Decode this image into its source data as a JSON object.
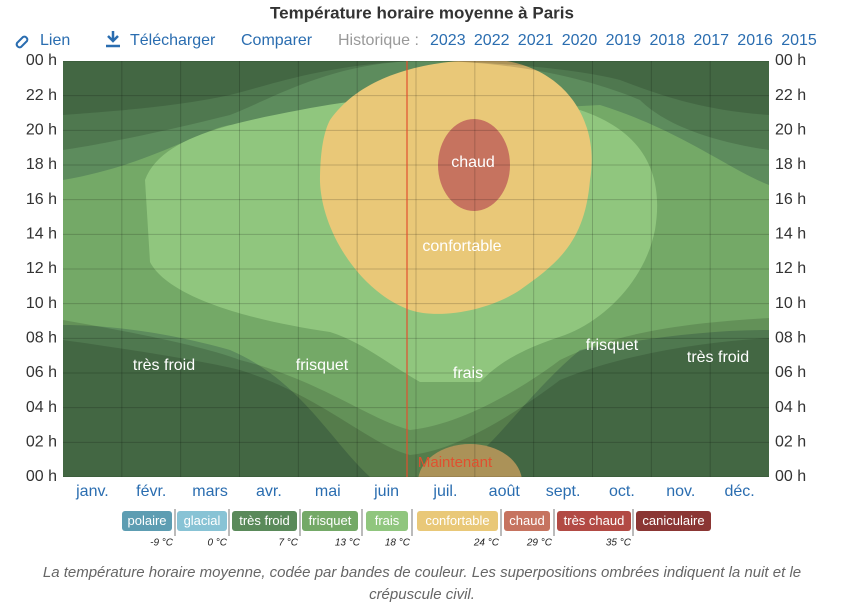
{
  "chart_data": {
    "type": "contour",
    "title": "Température horaire moyenne à Paris",
    "categories": [
      "janv.",
      "févr.",
      "mars",
      "avr.",
      "mai",
      "juin",
      "juil.",
      "août",
      "sept.",
      "oct.",
      "nov.",
      "déc."
    ],
    "ylim": [
      0,
      24
    ],
    "yticks": [
      {
        "value": 0,
        "label": "00 h"
      },
      {
        "value": 2,
        "label": "02 h"
      },
      {
        "value": 4,
        "label": "04 h"
      },
      {
        "value": 6,
        "label": "06 h"
      },
      {
        "value": 8,
        "label": "08 h"
      },
      {
        "value": 10,
        "label": "10 h"
      },
      {
        "value": 12,
        "label": "12 h"
      },
      {
        "value": 14,
        "label": "14 h"
      },
      {
        "value": 16,
        "label": "16 h"
      },
      {
        "value": 18,
        "label": "18 h"
      },
      {
        "value": 20,
        "label": "20 h"
      },
      {
        "value": 22,
        "label": "22 h"
      },
      {
        "value": 24,
        "label": "00 h"
      }
    ],
    "grid": true,
    "annotations": [
      "très froid",
      "frisquet",
      "frais",
      "frisquet",
      "très froid",
      "confortable",
      "chaud",
      "Maintenant"
    ],
    "legend": [
      {
        "name": "polaire",
        "color": "#5d9db2"
      },
      {
        "name": "glacial",
        "color": "#88c3d5"
      },
      {
        "name": "très froid",
        "color": "#5a8a5a"
      },
      {
        "name": "frisquet",
        "color": "#74a967"
      },
      {
        "name": "frais",
        "color": "#90c67e"
      },
      {
        "name": "confortable",
        "color": "#e9c878"
      },
      {
        "name": "chaud",
        "color": "#c6735f"
      },
      {
        "name": "très chaud",
        "color": "#b24a44"
      },
      {
        "name": "caniculaire",
        "color": "#8b3634"
      }
    ],
    "legend_ticks": [
      {
        "value": -9,
        "label": "-9 °C"
      },
      {
        "value": 0,
        "label": "0 °C"
      },
      {
        "value": 7,
        "label": "7 °C"
      },
      {
        "value": 13,
        "label": "13 °C"
      },
      {
        "value": 18,
        "label": "18 °C"
      },
      {
        "value": 24,
        "label": "24 °C"
      },
      {
        "value": 29,
        "label": "29 °C"
      },
      {
        "value": 35,
        "label": "35 °C"
      }
    ]
  },
  "toolbar": {
    "link": "Lien",
    "download": "Télécharger",
    "compare": "Comparer",
    "history": "Historique :",
    "years": [
      "2023",
      "2022",
      "2021",
      "2020",
      "2019",
      "2018",
      "2017",
      "2016",
      "2015"
    ]
  },
  "caption": "La température horaire moyenne, codée par bandes de couleur. Les superpositions ombrées indiquent la nuit et le crépuscule civil."
}
